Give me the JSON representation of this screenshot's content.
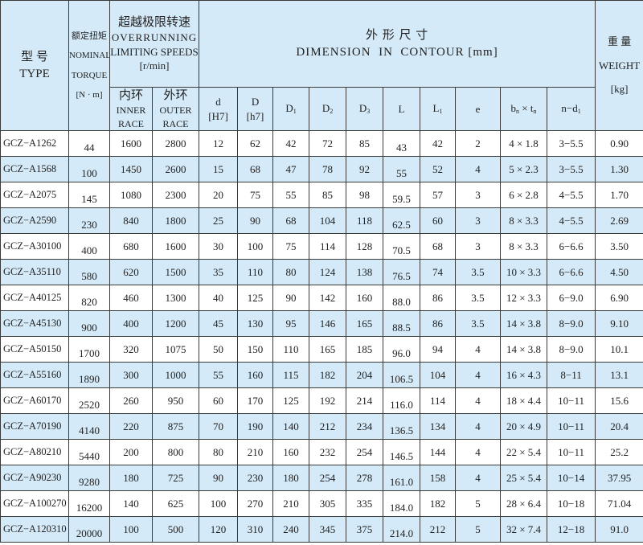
{
  "header": {
    "type_zh": "型 号",
    "type_en": "TYPE",
    "torque_zh": "额定扭矩",
    "torque_en1": "NOMINAL",
    "torque_en2": "TORQUE",
    "torque_unit": "[N · m]",
    "speed_zh": "超越极限转速",
    "speed_en1": "OVERRUNNING",
    "speed_en2": "LIMITING SPEEDS",
    "speed_unit": "[r/min]",
    "inner_zh": "内环",
    "inner_en1": "INNER",
    "inner_en2": "RACE",
    "outer_zh": "外环",
    "outer_en1": "OUTER",
    "outer_en2": "RACE",
    "dim_zh": "外 形 尺 寸",
    "dim_en": "DIMENSION  IN  CONTOUR [mm]",
    "weight_zh": "重 量",
    "weight_en": "WEIGHT",
    "weight_unit": "[kg]",
    "d": "d",
    "d_tol": "[H7]",
    "D": "D",
    "D_tol": "[h7]",
    "D1": "D",
    "D1_sub": "1",
    "D2": "D",
    "D2_sub": "2",
    "D3": "D",
    "D3_sub": "3",
    "L": "L",
    "L1": "L",
    "L1_sub": "1",
    "e": "e",
    "bt_b": "b",
    "bt_b_sub": "n",
    "bt_x": " × t",
    "bt_t_sub": "n",
    "nd": "n−d",
    "nd_sub": "1"
  },
  "colors": {
    "header_bg": "#d4eaf8",
    "row_alt_bg": "#d4eaf8",
    "border": "#3a3a3a"
  },
  "rows": [
    [
      "GCZ−A1262",
      "44",
      "1600",
      "2800",
      "12",
      "62",
      "42",
      "72",
      "85",
      "43",
      "42",
      "2",
      "4 × 1.8",
      "3−5.5",
      "0.90"
    ],
    [
      "GCZ−A1568",
      "100",
      "1450",
      "2600",
      "15",
      "68",
      "47",
      "78",
      "92",
      "55",
      "52",
      "4",
      "5 × 2.3",
      "3−5.5",
      "1.30"
    ],
    [
      "GCZ−A2075",
      "145",
      "1080",
      "2300",
      "20",
      "75",
      "55",
      "85",
      "98",
      "59.5",
      "57",
      "3",
      "6 × 2.8",
      "4−5.5",
      "1.70"
    ],
    [
      "GCZ−A2590",
      "230",
      "840",
      "1800",
      "25",
      "90",
      "68",
      "104",
      "118",
      "62.5",
      "60",
      "3",
      "8 × 3.3",
      "4−5.5",
      "2.69"
    ],
    [
      "GCZ−A30100",
      "400",
      "680",
      "1600",
      "30",
      "100",
      "75",
      "114",
      "128",
      "70.5",
      "68",
      "3",
      "8 × 3.3",
      "6−6.6",
      "3.50"
    ],
    [
      "GCZ−A35110",
      "580",
      "620",
      "1500",
      "35",
      "110",
      "80",
      "124",
      "138",
      "76.5",
      "74",
      "3.5",
      "10 × 3.3",
      "6−6.6",
      "4.50"
    ],
    [
      "GCZ−A40125",
      "820",
      "460",
      "1300",
      "40",
      "125",
      "90",
      "142",
      "160",
      "88.0",
      "86",
      "3.5",
      "12 × 3.3",
      "6−9.0",
      "6.90"
    ],
    [
      "GCZ−A45130",
      "900",
      "400",
      "1200",
      "45",
      "130",
      "95",
      "146",
      "165",
      "88.5",
      "86",
      "3.5",
      "14 × 3.8",
      "8−9.0",
      "9.10"
    ],
    [
      "GCZ−A50150",
      "1700",
      "320",
      "1075",
      "50",
      "150",
      "110",
      "165",
      "185",
      "96.0",
      "94",
      "4",
      "14 × 3.8",
      "8−9.0",
      "10.1"
    ],
    [
      "GCZ−A55160",
      "1890",
      "300",
      "1000",
      "55",
      "160",
      "115",
      "182",
      "204",
      "106.5",
      "104",
      "4",
      "16 × 4.3",
      "8−11",
      "13.1"
    ],
    [
      "GCZ−A60170",
      "2520",
      "260",
      "950",
      "60",
      "170",
      "125",
      "192",
      "214",
      "116.0",
      "114",
      "4",
      "18 × 4.4",
      "10−11",
      "15.6"
    ],
    [
      "GCZ−A70190",
      "4140",
      "220",
      "875",
      "70",
      "190",
      "140",
      "212",
      "234",
      "136.5",
      "134",
      "4",
      "20 × 4.9",
      "10−11",
      "20.4"
    ],
    [
      "GCZ−A80210",
      "5440",
      "200",
      "800",
      "80",
      "210",
      "160",
      "232",
      "254",
      "146.5",
      "144",
      "4",
      "22 × 5.4",
      "10−11",
      "25.2"
    ],
    [
      "GCZ−A90230",
      "9280",
      "180",
      "725",
      "90",
      "230",
      "180",
      "254",
      "278",
      "161.0",
      "158",
      "4",
      "25 × 5.4",
      "10−14",
      "37.95"
    ],
    [
      "GCZ−A100270",
      "16200",
      "140",
      "625",
      "100",
      "270",
      "210",
      "305",
      "335",
      "184.0",
      "182",
      "5",
      "28 × 6.4",
      "10−18",
      "71.04"
    ],
    [
      "GCZ−A120310",
      "20000",
      "100",
      "500",
      "120",
      "310",
      "240",
      "345",
      "375",
      "214.0",
      "212",
      "5",
      "32 × 7.4",
      "12−18",
      "91.0"
    ]
  ]
}
